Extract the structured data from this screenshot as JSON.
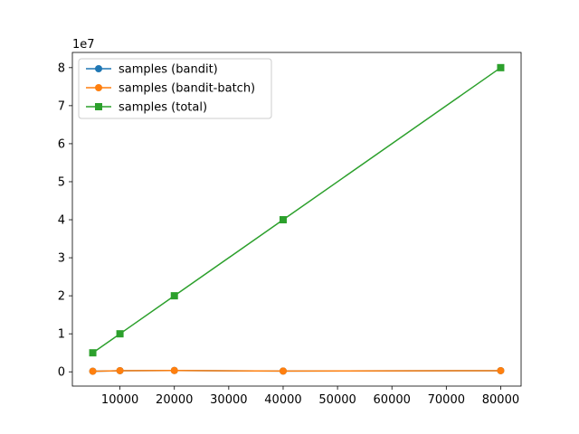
{
  "chart_data": {
    "type": "line",
    "xlabel": "",
    "ylabel": "",
    "y_offset_label": "1e7",
    "xlim": [
      1250,
      83750
    ],
    "ylim": [
      -3750000,
      84000000
    ],
    "x": [
      5000,
      10000,
      20000,
      40000,
      80000
    ],
    "x_ticks": [
      10000,
      20000,
      30000,
      40000,
      50000,
      60000,
      70000,
      80000
    ],
    "x_tick_labels": [
      "10000",
      "20000",
      "30000",
      "40000",
      "50000",
      "60000",
      "70000",
      "80000"
    ],
    "y_ticks": [
      0,
      10000000,
      20000000,
      30000000,
      40000000,
      50000000,
      60000000,
      70000000,
      80000000
    ],
    "y_tick_labels": [
      "0",
      "1",
      "2",
      "3",
      "4",
      "5",
      "6",
      "7",
      "8"
    ],
    "grid": false,
    "legend_position": "upper-left",
    "series": [
      {
        "name": "samples (bandit)",
        "values": [
          150000,
          300000,
          350000,
          200000,
          300000
        ],
        "color": "#1f77b4",
        "marker": "circle"
      },
      {
        "name": "samples (bandit-batch)",
        "values": [
          150000,
          300000,
          350000,
          200000,
          300000
        ],
        "color": "#ff7f0e",
        "marker": "circle"
      },
      {
        "name": "samples (total)",
        "values": [
          5000000,
          10000000,
          20000000,
          40000000,
          80000000
        ],
        "color": "#2ca02c",
        "marker": "square"
      }
    ]
  }
}
